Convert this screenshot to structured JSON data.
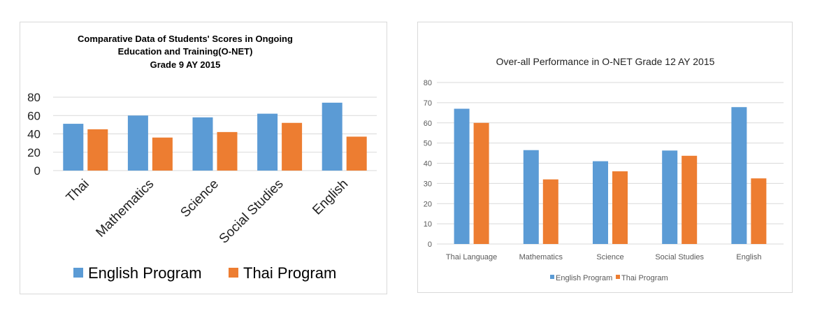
{
  "chart_data": [
    {
      "type": "bar",
      "title_lines": [
        "Comparative Data of Students' Scores in Ongoing",
        "Education and Training(O-NET)",
        "Grade 9    AY 2015"
      ],
      "categories": [
        "Thai",
        "Mathematics",
        "Science",
        "Social Studies",
        "English"
      ],
      "series": [
        {
          "name": "English Program",
          "color": "#5b9bd5",
          "values": [
            51,
            60,
            58,
            62,
            74
          ]
        },
        {
          "name": "Thai Program",
          "color": "#ed7d31",
          "values": [
            45,
            36,
            42,
            52,
            37
          ]
        }
      ],
      "ylim": [
        0,
        80
      ],
      "yticks": [
        0,
        20,
        40,
        60,
        80
      ],
      "grid": true,
      "legend": "bottom",
      "xlabel": "",
      "ylabel": ""
    },
    {
      "type": "bar",
      "title_lines": [
        "Over-all Performance in O-NET Grade 12   AY 2015"
      ],
      "categories": [
        "Thai Language",
        "Mathematics",
        "Science",
        "Social Studies",
        "English"
      ],
      "series": [
        {
          "name": "English Program",
          "color": "#5b9bd5",
          "values": [
            67,
            46.5,
            41,
            46.3,
            67.8
          ]
        },
        {
          "name": "Thai Program",
          "color": "#ed7d31",
          "values": [
            60,
            32,
            36,
            43.7,
            32.5
          ]
        }
      ],
      "ylim": [
        0,
        80
      ],
      "yticks": [
        0,
        10,
        20,
        30,
        40,
        50,
        60,
        70,
        80
      ],
      "grid": true,
      "legend": "bottom",
      "xlabel": "",
      "ylabel": ""
    }
  ]
}
